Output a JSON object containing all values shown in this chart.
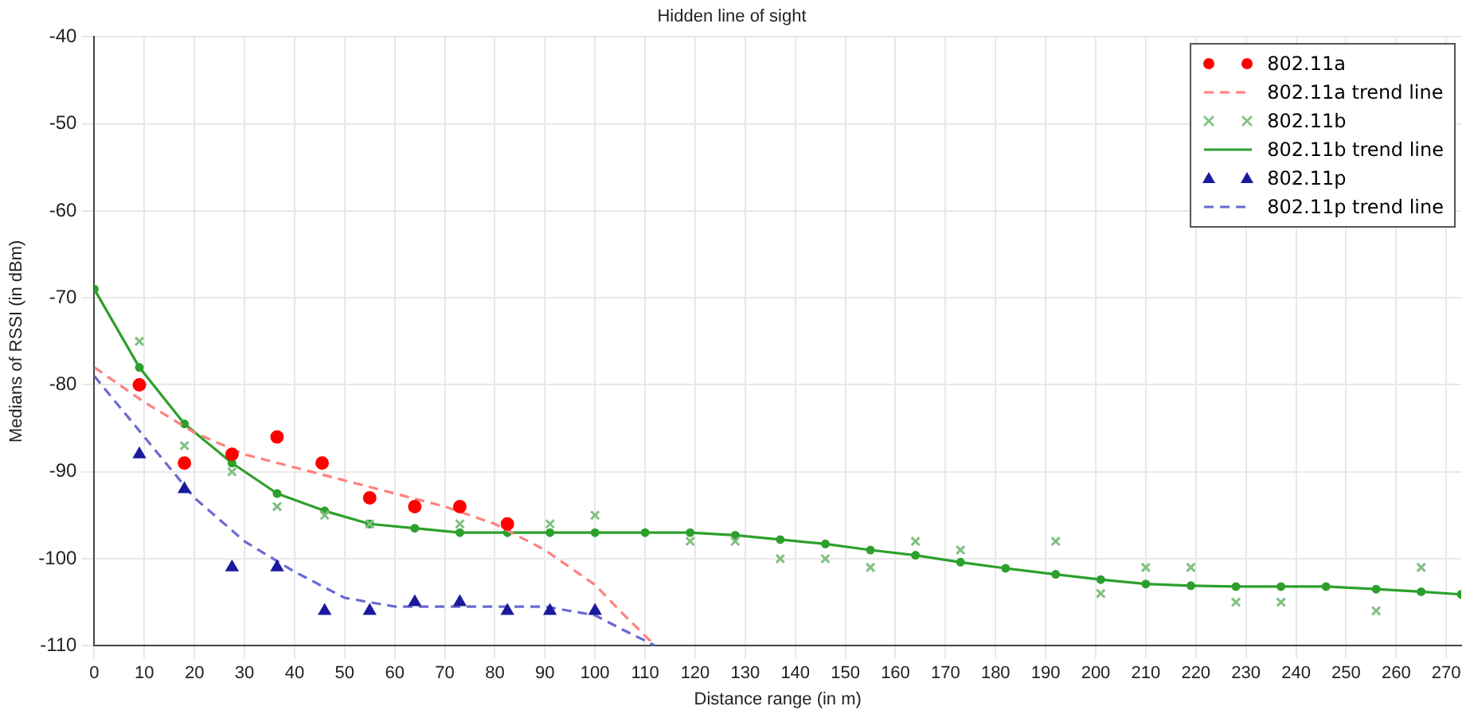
{
  "chart_data": {
    "type": "scatter",
    "title": "Hidden line of sight",
    "xlabel": "Distance range (in m)",
    "ylabel": "Medians of RSSI (in dBm)",
    "xlim": [
      0,
      273
    ],
    "xticks": [
      0,
      10,
      20,
      30,
      40,
      50,
      60,
      70,
      80,
      90,
      100,
      110,
      120,
      130,
      140,
      150,
      160,
      170,
      180,
      190,
      200,
      210,
      220,
      230,
      240,
      250,
      260,
      270
    ],
    "ylim": [
      -110,
      -40
    ],
    "yticks": [
      -110,
      -100,
      -90,
      -80,
      -70,
      -60,
      -50,
      -40
    ],
    "grid": true,
    "legend": "top right",
    "series": [
      {
        "name": "802.11a",
        "type": "scatter",
        "color": "#ff0000",
        "marker": "circle",
        "x": [
          9,
          18,
          27.5,
          36.5,
          45.5,
          55,
          64,
          73,
          82.5
        ],
        "values": [
          -80,
          -89,
          -88,
          -86,
          -89,
          -93,
          -94,
          -94,
          -96
        ]
      },
      {
        "name": "802.11a trend line",
        "type": "line",
        "color": "#ff8080",
        "marker": "none",
        "line_style": "dashed",
        "x": [
          0,
          10,
          20,
          30,
          40,
          50,
          60,
          70,
          80,
          90,
          100,
          105,
          112
        ],
        "values": [
          -78,
          -82,
          -85.5,
          -88,
          -89.5,
          -91,
          -92.5,
          -94,
          -96,
          -99,
          -103,
          -106,
          -110
        ]
      },
      {
        "name": "802.11b",
        "type": "scatter",
        "color": "#80c080",
        "marker": "cross",
        "x": [
          9,
          18,
          27.5,
          36.5,
          46,
          55,
          73,
          91,
          100,
          119,
          128,
          137,
          146,
          155,
          164,
          173,
          192,
          201,
          210,
          219,
          228,
          237,
          256,
          265
        ],
        "values": [
          -75,
          -87,
          -90,
          -94,
          -95,
          -96,
          -96,
          -96,
          -95,
          -98,
          -98,
          -100,
          -100,
          -101,
          -98,
          -99,
          -98,
          -104,
          -101,
          -101,
          -105,
          -105,
          -106,
          -101
        ]
      },
      {
        "name": "802.11b trend line",
        "type": "line",
        "color": "#2ca02c",
        "marker": "circle",
        "line_style": "solid",
        "x": [
          0,
          9,
          18,
          27.5,
          36.5,
          46,
          55,
          64,
          73,
          82.5,
          91,
          100,
          110,
          119,
          128,
          137,
          146,
          155,
          164,
          173,
          182,
          192,
          201,
          210,
          219,
          228,
          237,
          246,
          256,
          265,
          273
        ],
        "values": [
          -69,
          -78,
          -84.5,
          -89,
          -92.5,
          -94.5,
          -96,
          -96.5,
          -97,
          -97,
          -97,
          -97,
          -97,
          -97,
          -97.3,
          -97.8,
          -98.3,
          -99,
          -99.6,
          -100.4,
          -101.1,
          -101.8,
          -102.4,
          -102.9,
          -103.1,
          -103.2,
          -103.2,
          -103.2,
          -103.5,
          -103.8,
          -104.1
        ]
      },
      {
        "name": "802.11p",
        "type": "scatter",
        "color": "#1a1a9e",
        "marker": "triangle",
        "x": [
          9,
          18,
          27.5,
          36.5,
          46,
          55,
          64,
          73,
          82.5,
          91,
          100
        ],
        "values": [
          -88,
          -92,
          -101,
          -101,
          -106,
          -106,
          -105,
          -105,
          -106,
          -106,
          -106
        ]
      },
      {
        "name": "802.11p trend line",
        "type": "line",
        "color": "#6a6ad0",
        "marker": "none",
        "line_style": "dashed",
        "x": [
          0,
          10,
          20,
          30,
          40,
          50,
          60,
          70,
          80,
          90,
          100,
          105,
          112
        ],
        "values": [
          -79,
          -86,
          -93,
          -98,
          -101.5,
          -104.5,
          -105.5,
          -105.5,
          -105.5,
          -105.5,
          -106.5,
          -108,
          -110
        ]
      }
    ]
  }
}
